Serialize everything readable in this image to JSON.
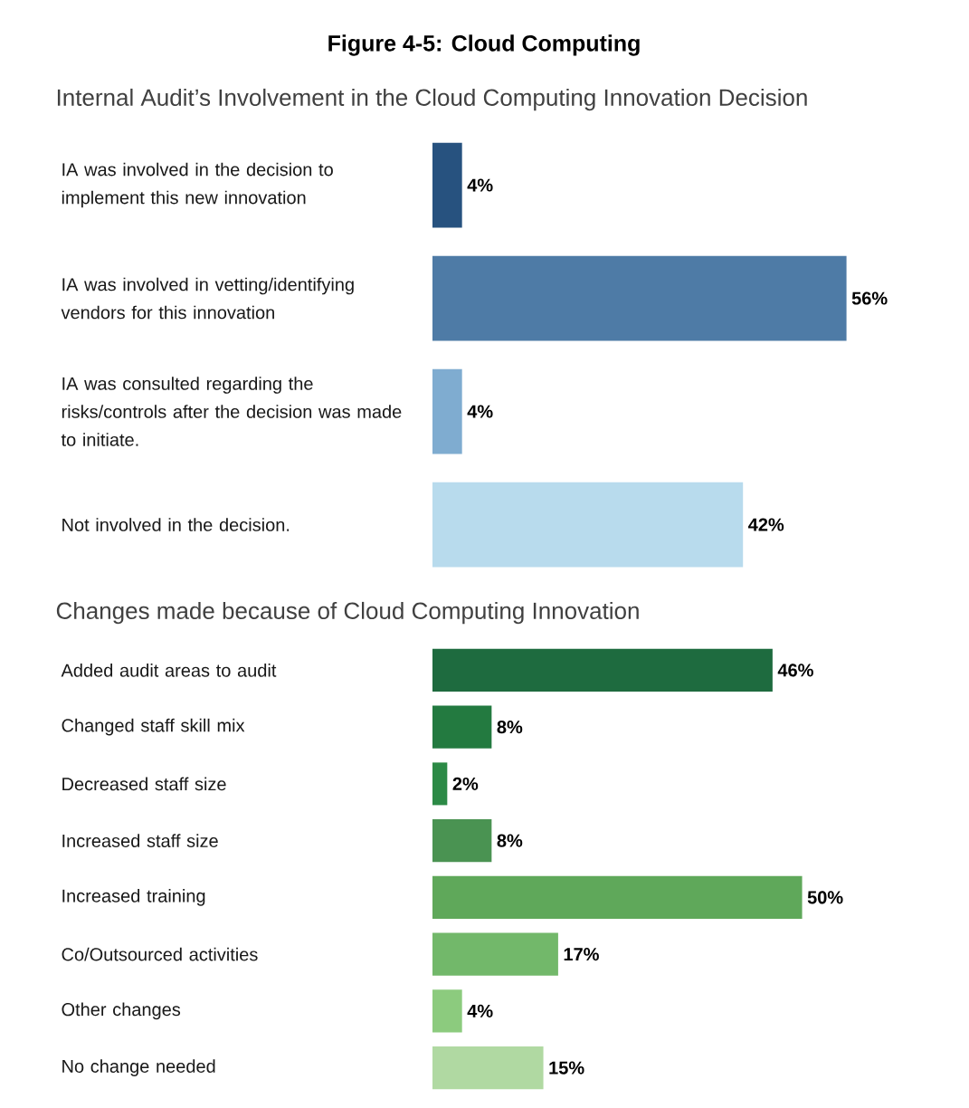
{
  "chart_data": [
    {
      "type": "bar",
      "orientation": "horizontal",
      "title": "Figure 4-5: Cloud Computing",
      "subtitle": "Internal Audit’s Involvement in the Cloud Computing Innovation Decision",
      "categories": [
        "IA was involved in the decision to implement this new innovation",
        "IA was involved in vetting/identifying vendors for this innovation",
        "IA was consulted regarding the risks/controls after the decision was made to initiate.",
        "Not involved in the decision."
      ],
      "values": [
        4,
        56,
        4,
        42
      ],
      "value_labels": [
        "4%",
        "56%",
        "4%",
        "42%"
      ],
      "colors": [
        "#27527f",
        "#4e7ba6",
        "#7facd0",
        "#b8dbed"
      ]
    },
    {
      "type": "bar",
      "orientation": "horizontal",
      "title": "Changes made because of Cloud Computing Innovation",
      "categories": [
        "Added audit areas to audit",
        "Changed staff skill mix",
        "Decreased staff size",
        "Increased staff size",
        "Increased training",
        "Co/Outsourced activities",
        "Other changes",
        "No change needed"
      ],
      "values": [
        46,
        8,
        2,
        8,
        50,
        17,
        4,
        15
      ],
      "value_labels": [
        "46%",
        "8%",
        "2%",
        "8%",
        "50%",
        "17%",
        "4%",
        "15%"
      ],
      "colors": [
        "#1e6b3f",
        "#237a40",
        "#2c8a46",
        "#4a9352",
        "#5fa85a",
        "#72b86a",
        "#8ccb7e",
        "#b0d9a2"
      ]
    }
  ]
}
